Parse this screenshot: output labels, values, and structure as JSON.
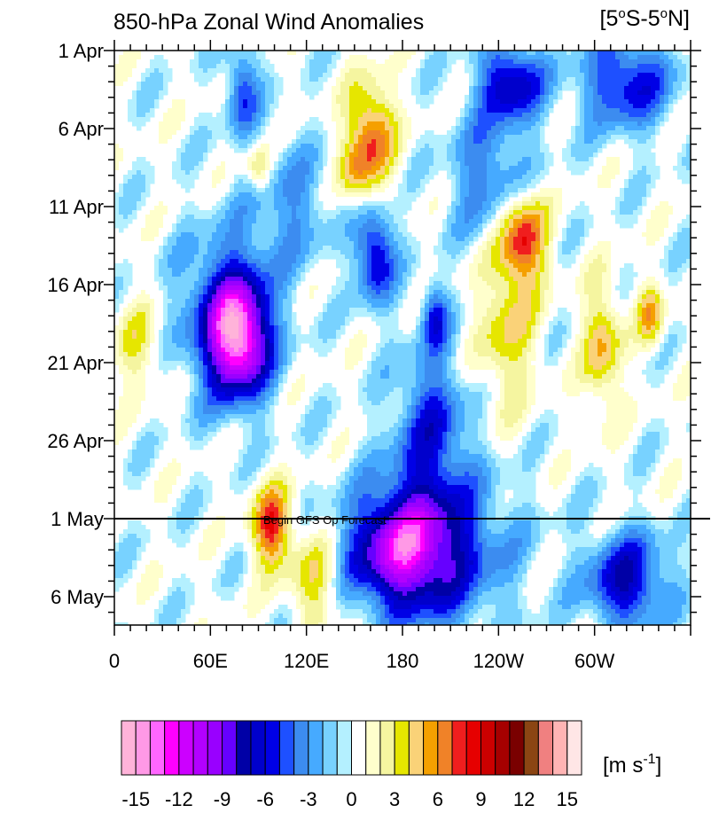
{
  "chart_data": {
    "type": "heatmap",
    "title": "850-hPa Zonal Wind Anomalies",
    "region_label": {
      "text": "[5",
      "sup1": "o",
      "mid": "S-5",
      "sup2": "o",
      "end": "N]"
    },
    "x_ticks": [
      {
        "label": "0",
        "lon": 0
      },
      {
        "label": "60E",
        "lon": 60
      },
      {
        "label": "120E",
        "lon": 120
      },
      {
        "label": "180",
        "lon": 180
      },
      {
        "label": "120W",
        "lon": 240
      },
      {
        "label": "60W",
        "lon": 300
      }
    ],
    "x_range": [
      0,
      360
    ],
    "y_ticks": [
      {
        "label": "1 Apr",
        "day": 0
      },
      {
        "label": "6 Apr",
        "day": 5
      },
      {
        "label": "11 Apr",
        "day": 10
      },
      {
        "label": "16 Apr",
        "day": 15
      },
      {
        "label": "21 Apr",
        "day": 20
      },
      {
        "label": "26 Apr",
        "day": 25
      },
      {
        "label": "1 May",
        "day": 30
      },
      {
        "label": "6 May",
        "day": 35
      }
    ],
    "y_range_days": [
      0,
      37
    ],
    "forecast_line": {
      "label": "Begin GFS Op Forecast",
      "day": 30
    },
    "anomaly_blobs": [
      {
        "lon": 78,
        "day": 18.5,
        "rlon": 18,
        "rday": 3.5,
        "value": -11
      },
      {
        "lon": 70,
        "day": 17,
        "rlon": 28,
        "rday": 5,
        "value": -6
      },
      {
        "lon": 178,
        "day": 32,
        "rlon": 30,
        "rday": 3.5,
        "value": -8
      },
      {
        "lon": 200,
        "day": 32,
        "rlon": 45,
        "rday": 5,
        "value": -6
      },
      {
        "lon": 198,
        "day": 24,
        "rlon": 22,
        "rday": 5,
        "value": -5
      },
      {
        "lon": 320,
        "day": 34,
        "rlon": 25,
        "rday": 3,
        "value": -7
      },
      {
        "lon": 320,
        "day": 2,
        "rlon": 28,
        "rday": 3,
        "value": -6
      },
      {
        "lon": 248,
        "day": 2,
        "rlon": 20,
        "rday": 2.5,
        "value": -7
      },
      {
        "lon": 80,
        "day": 2.5,
        "rlon": 10,
        "rday": 3,
        "value": -5
      },
      {
        "lon": 163,
        "day": 13,
        "rlon": 12,
        "rday": 3,
        "value": -7
      },
      {
        "lon": 200,
        "day": 17,
        "rlon": 8,
        "rday": 2,
        "value": -5
      },
      {
        "lon": 235,
        "day": 8,
        "rlon": 25,
        "rday": 4,
        "value": -4
      },
      {
        "lon": 110,
        "day": 10,
        "rlon": 25,
        "rday": 4,
        "value": -3
      },
      {
        "lon": 160,
        "day": 5.5,
        "rlon": 15,
        "rday": 3.5,
        "value": 7
      },
      {
        "lon": 255,
        "day": 12,
        "rlon": 15,
        "rday": 3,
        "value": 8
      },
      {
        "lon": 245,
        "day": 18,
        "rlon": 18,
        "rday": 5,
        "value": 4
      },
      {
        "lon": 98,
        "day": 30.5,
        "rlon": 12,
        "rday": 2.5,
        "value": 8
      },
      {
        "lon": 125,
        "day": 34,
        "rlon": 16,
        "rday": 3,
        "value": 4
      },
      {
        "lon": 305,
        "day": 19,
        "rlon": 12,
        "rday": 4,
        "value": 5
      },
      {
        "lon": 335,
        "day": 17,
        "rlon": 8,
        "rday": 2,
        "value": 5
      },
      {
        "lon": 15,
        "day": 19,
        "rlon": 15,
        "rday": 3,
        "value": 3
      },
      {
        "lon": 150,
        "day": 8,
        "rlon": 10,
        "rday": 2,
        "value": 3
      },
      {
        "lon": 90,
        "day": 7.5,
        "rlon": 8,
        "rday": 1.5,
        "value": 4
      }
    ],
    "colorbar": {
      "levels": [
        -16,
        -15,
        -14,
        -13,
        -12,
        -11,
        -10,
        -9,
        -8,
        -7,
        -6,
        -5,
        -4,
        -3,
        -2,
        -1,
        0,
        1,
        2,
        3,
        4,
        5,
        6,
        7,
        8,
        9,
        10,
        11,
        12,
        13,
        14,
        15,
        16
      ],
      "colors": [
        "#ffb3d9",
        "#ff99e6",
        "#ff66ff",
        "#ff00ff",
        "#cc00ff",
        "#b300ff",
        "#9900ff",
        "#6600ff",
        "#0000a6",
        "#0000cc",
        "#0000e6",
        "#1e50ff",
        "#3c8cf0",
        "#46aaff",
        "#78d2ff",
        "#b4f0ff",
        "#ffffff",
        "#ffffcc",
        "#f5f5a0",
        "#e6e600",
        "#fad278",
        "#f5a000",
        "#f08228",
        "#f01e1e",
        "#e60000",
        "#cc0000",
        "#a60000",
        "#7a0000",
        "#8b4513",
        "#f08080",
        "#ffb4b4",
        "#ffe6e6"
      ],
      "tick_labels": [
        {
          "label": "-15",
          "level": -15
        },
        {
          "label": "-12",
          "level": -12
        },
        {
          "label": "-9",
          "level": -9
        },
        {
          "label": "-6",
          "level": -6
        },
        {
          "label": "-3",
          "level": -3
        },
        {
          "label": "0",
          "level": 0
        },
        {
          "label": "3",
          "level": 3
        },
        {
          "label": "6",
          "level": 6
        },
        {
          "label": "9",
          "level": 9
        },
        {
          "label": "12",
          "level": 12
        },
        {
          "label": "15",
          "level": 15
        }
      ],
      "units": {
        "base": "[m s",
        "sup": "-1",
        "end": "]"
      }
    }
  }
}
